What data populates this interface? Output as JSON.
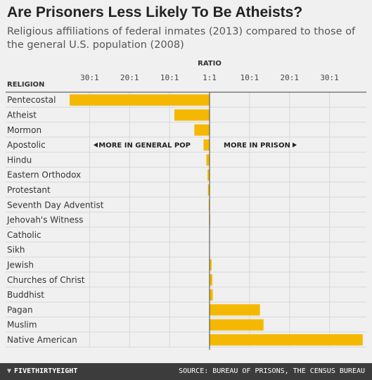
{
  "chart_data": {
    "type": "bar",
    "title": "Are Prisoners Less Likely To Be Atheists?",
    "subtitle": "Religious affiliations of federal inmates (2013) compared to those of the general U.S. population (2008)",
    "xlabel": "RATIO",
    "category_header": "RELIGION",
    "tick_labels": [
      "30:1",
      "20:1",
      "10:1",
      "1:1",
      "10:1",
      "20:1",
      "30:1"
    ],
    "tick_values": [
      -30,
      -20,
      -10,
      0,
      10,
      20,
      30
    ],
    "xlim": [
      -35,
      39
    ],
    "annotations": {
      "left": "MORE IN GENERAL POP",
      "right": "MORE IN PRISON"
    },
    "categories": [
      "Pentecostal",
      "Atheist",
      "Mormon",
      "Apostolic",
      "Hindu",
      "Eastern Orthodox",
      "Protestant",
      "Seventh Day Adventist",
      "Jehovah's Witness",
      "Catholic",
      "Sikh",
      "Jewish",
      "Churches of Christ",
      "Buddhist",
      "Pagan",
      "Muslim",
      "Native American"
    ],
    "values": [
      -35,
      -8.8,
      -3.8,
      -1.5,
      -0.8,
      -0.5,
      -0.4,
      -0.2,
      -0.1,
      0,
      0,
      0.5,
      0.7,
      0.8,
      12.6,
      13.5,
      38.3
    ],
    "bar_color": "#f5b800",
    "grid": true
  },
  "footer": {
    "brand": "FIVETHIRTYEIGHT",
    "logo_icon": "fox-icon",
    "source": "SOURCE: BUREAU OF PRISONS, THE CENSUS BUREAU"
  }
}
